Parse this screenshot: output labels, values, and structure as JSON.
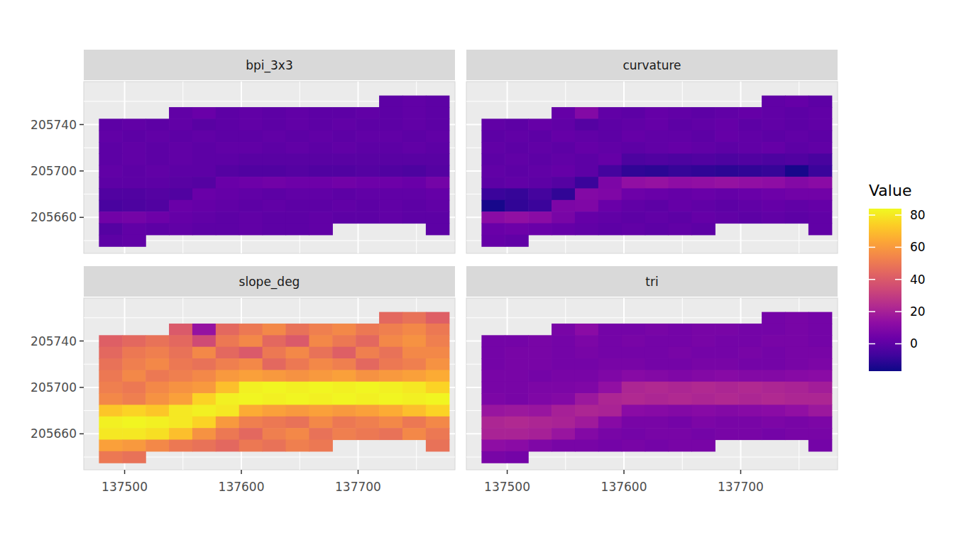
{
  "chart_data": {
    "type": "heatmap",
    "legend_title": "Value",
    "grid": true,
    "x": [
      137488,
      137508,
      137528,
      137548,
      137568,
      137588,
      137608,
      137628,
      137648,
      137668,
      137688,
      137708,
      137728,
      137748,
      137768
    ],
    "y": [
      205760,
      205750,
      205740,
      205730,
      205720,
      205710,
      205700,
      205690,
      205680,
      205670,
      205660,
      205650,
      205640
    ],
    "xlim": [
      137465,
      137783
    ],
    "ylim": [
      205629,
      205777
    ],
    "xticks": [
      137500,
      137600,
      137700
    ],
    "yticks": [
      205660,
      205700,
      205740
    ],
    "zlim": [
      -17,
      84
    ],
    "zticks": [
      0,
      20,
      40,
      60,
      80
    ],
    "panels": [
      {
        "title": "bpi_3x3",
        "cells": [
          [
            null,
            null,
            null,
            null,
            null,
            null,
            null,
            null,
            null,
            null,
            null,
            null,
            0,
            1,
            0
          ],
          [
            null,
            null,
            null,
            1,
            3,
            0,
            1,
            0,
            1,
            0,
            0,
            1,
            0,
            1,
            0
          ],
          [
            0,
            1,
            0,
            1,
            -1,
            0,
            1,
            0,
            1,
            0,
            1,
            0,
            0,
            1,
            0
          ],
          [
            1,
            0,
            1,
            0,
            1,
            0,
            0,
            1,
            0,
            1,
            0,
            1,
            1,
            0,
            1
          ],
          [
            0,
            1,
            0,
            1,
            0,
            1,
            1,
            0,
            1,
            0,
            1,
            0,
            0,
            1,
            0
          ],
          [
            0,
            1,
            0,
            1,
            0,
            0,
            -1,
            -1,
            -1,
            -1,
            -1,
            -1,
            -1,
            -1,
            -1
          ],
          [
            1,
            0,
            1,
            0,
            0,
            -2,
            -3,
            -3,
            -2,
            -3,
            -3,
            -2,
            -3,
            -4,
            -2
          ],
          [
            0,
            0,
            0,
            -1,
            -2,
            3,
            4,
            5,
            4,
            4,
            5,
            4,
            4,
            3,
            6
          ],
          [
            -3,
            -3,
            -2,
            -3,
            3,
            2,
            1,
            0,
            1,
            1,
            0,
            1,
            1,
            1,
            2
          ],
          [
            -5,
            -4,
            -3,
            3,
            2,
            1,
            0,
            1,
            0,
            0,
            1,
            0,
            1,
            0,
            1
          ],
          [
            5,
            6,
            4,
            2,
            1,
            0,
            1,
            0,
            0,
            1,
            0,
            0,
            1,
            0,
            0
          ],
          [
            -2,
            1,
            0,
            1,
            0,
            0,
            1,
            0,
            0,
            1,
            null,
            null,
            null,
            null,
            0
          ],
          [
            0,
            1,
            null,
            null,
            null,
            null,
            null,
            null,
            null,
            null,
            null,
            null,
            null,
            null,
            null
          ]
        ]
      },
      {
        "title": "curvature",
        "cells": [
          [
            null,
            null,
            null,
            null,
            null,
            null,
            null,
            null,
            null,
            null,
            null,
            null,
            1,
            2,
            0
          ],
          [
            null,
            null,
            null,
            2,
            10,
            1,
            0,
            2,
            1,
            0,
            1,
            2,
            1,
            0,
            1
          ],
          [
            1,
            0,
            2,
            1,
            -2,
            0,
            1,
            2,
            0,
            1,
            2,
            0,
            1,
            0,
            1
          ],
          [
            0,
            1,
            0,
            2,
            1,
            0,
            2,
            1,
            1,
            0,
            2,
            1,
            0,
            1,
            0
          ],
          [
            1,
            0,
            1,
            0,
            2,
            1,
            0,
            1,
            2,
            1,
            0,
            1,
            2,
            0,
            1
          ],
          [
            0,
            1,
            0,
            1,
            0,
            2,
            -4,
            -3,
            -4,
            -3,
            -4,
            -3,
            -4,
            -3,
            -5
          ],
          [
            1,
            0,
            1,
            2,
            0,
            -6,
            -10,
            -11,
            -9,
            -10,
            -11,
            -10,
            -9,
            -15,
            -8
          ],
          [
            0,
            1,
            0,
            -2,
            -8,
            8,
            14,
            15,
            13,
            14,
            15,
            14,
            13,
            10,
            12
          ],
          [
            -8,
            -9,
            -6,
            -10,
            10,
            9,
            4,
            3,
            2,
            3,
            2,
            3,
            4,
            5,
            5
          ],
          [
            -15,
            -10,
            -8,
            8,
            9,
            3,
            1,
            0,
            2,
            1,
            0,
            1,
            2,
            1,
            2
          ],
          [
            12,
            14,
            12,
            7,
            2,
            1,
            0,
            1,
            0,
            2,
            1,
            0,
            1,
            0,
            1
          ],
          [
            3,
            4,
            3,
            2,
            1,
            0,
            1,
            0,
            1,
            0,
            null,
            null,
            null,
            null,
            1
          ],
          [
            2,
            1,
            null,
            null,
            null,
            null,
            null,
            null,
            null,
            null,
            null,
            null,
            null,
            null,
            null
          ]
        ]
      },
      {
        "title": "slope_deg",
        "cells": [
          [
            null,
            null,
            null,
            null,
            null,
            null,
            null,
            null,
            null,
            null,
            null,
            null,
            45,
            48,
            42
          ],
          [
            null,
            null,
            null,
            40,
            15,
            45,
            50,
            55,
            48,
            52,
            55,
            50,
            52,
            55,
            50
          ],
          [
            42,
            45,
            48,
            45,
            35,
            50,
            55,
            45,
            40,
            55,
            50,
            45,
            55,
            58,
            52
          ],
          [
            45,
            50,
            52,
            48,
            55,
            45,
            40,
            50,
            55,
            48,
            42,
            52,
            48,
            55,
            55
          ],
          [
            48,
            52,
            55,
            50,
            48,
            52,
            55,
            45,
            50,
            55,
            52,
            45,
            50,
            52,
            58
          ],
          [
            50,
            55,
            50,
            52,
            55,
            60,
            62,
            60,
            58,
            60,
            62,
            58,
            60,
            62,
            65
          ],
          [
            52,
            50,
            55,
            58,
            60,
            70,
            82,
            83,
            82,
            83,
            82,
            83,
            82,
            80,
            75
          ],
          [
            55,
            52,
            58,
            62,
            75,
            82,
            83,
            82,
            83,
            82,
            83,
            82,
            83,
            82,
            83
          ],
          [
            72,
            75,
            72,
            80,
            82,
            80,
            65,
            62,
            60,
            62,
            60,
            62,
            65,
            70,
            75
          ],
          [
            82,
            83,
            82,
            80,
            75,
            60,
            52,
            50,
            48,
            55,
            50,
            52,
            55,
            50,
            55
          ],
          [
            80,
            80,
            78,
            70,
            58,
            50,
            45,
            52,
            55,
            48,
            52,
            50,
            48,
            55,
            50
          ],
          [
            62,
            60,
            55,
            50,
            48,
            45,
            50,
            48,
            52,
            50,
            null,
            null,
            null,
            null,
            48
          ],
          [
            50,
            48,
            null,
            null,
            null,
            null,
            null,
            null,
            null,
            null,
            null,
            null,
            null,
            null,
            null
          ]
        ]
      },
      {
        "title": "tri",
        "cells": [
          [
            null,
            null,
            null,
            null,
            null,
            null,
            null,
            null,
            null,
            null,
            null,
            null,
            6,
            7,
            6
          ],
          [
            null,
            null,
            null,
            7,
            12,
            6,
            6,
            7,
            6,
            7,
            7,
            6,
            6,
            7,
            6
          ],
          [
            6,
            6,
            7,
            6,
            8,
            6,
            7,
            6,
            6,
            7,
            6,
            6,
            7,
            7,
            6
          ],
          [
            6,
            7,
            7,
            6,
            7,
            6,
            6,
            6,
            7,
            6,
            6,
            7,
            6,
            7,
            7
          ],
          [
            6,
            7,
            7,
            6,
            6,
            7,
            7,
            6,
            6,
            7,
            7,
            6,
            6,
            7,
            8
          ],
          [
            7,
            7,
            6,
            7,
            7,
            9,
            11,
            10,
            9,
            10,
            11,
            10,
            10,
            11,
            12
          ],
          [
            7,
            7,
            8,
            8,
            9,
            14,
            22,
            23,
            22,
            23,
            22,
            23,
            22,
            21,
            19
          ],
          [
            8,
            7,
            9,
            10,
            17,
            22,
            23,
            22,
            23,
            22,
            23,
            22,
            23,
            22,
            22
          ],
          [
            16,
            17,
            16,
            20,
            22,
            21,
            12,
            11,
            10,
            11,
            10,
            11,
            12,
            14,
            17
          ],
          [
            22,
            23,
            22,
            21,
            18,
            11,
            7,
            7,
            6,
            8,
            7,
            7,
            8,
            7,
            8
          ],
          [
            21,
            21,
            20,
            16,
            10,
            7,
            6,
            7,
            7,
            6,
            7,
            7,
            6,
            7,
            7
          ],
          [
            13,
            12,
            9,
            7,
            7,
            6,
            7,
            6,
            7,
            7,
            null,
            null,
            null,
            null,
            6
          ],
          [
            7,
            6,
            null,
            null,
            null,
            null,
            null,
            null,
            null,
            null,
            null,
            null,
            null,
            null,
            null
          ]
        ]
      }
    ]
  }
}
